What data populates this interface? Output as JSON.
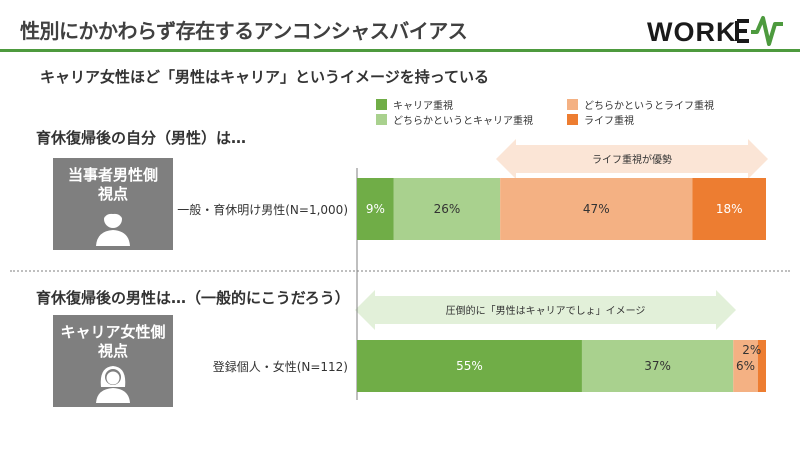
{
  "header": {
    "title": "性別にかかわらず存在するアンコンシャスバイアス",
    "logo_text": "WORKEX"
  },
  "subtitle": "キャリア女性ほど「男性はキャリア」というイメージを持っている",
  "colors": {
    "accent_green": "#4d9a3e",
    "career": "#70ad47",
    "lean_career": "#a9d18e",
    "lean_life": "#f4b183",
    "life": "#ed7d31",
    "persona_bg": "#7f7f7f",
    "arrow_bg": "#fbe5d6",
    "arrow_bg2": "#e2f0d9"
  },
  "sections": [
    {
      "heading": "育休復帰後の自分（男性）は…",
      "persona_label": "当事者男性側\n視点",
      "persona_icon": "male-user-icon",
      "arrow_label": "ライフ重視が優勢"
    },
    {
      "heading": "育休復帰後の男性は…（一般的にこうだろう）",
      "persona_label": "キャリア女性側\n視点",
      "persona_icon": "female-user-icon",
      "arrow_label": "圧倒的に「男性はキャリアでしょ」イメージ"
    }
  ],
  "chart_data": {
    "type": "bar",
    "orientation": "horizontal",
    "stacked": true,
    "percent": true,
    "categories": [
      "一般・育休明け男性(N=1,000)",
      "登録個人・女性(N=112)"
    ],
    "series": [
      {
        "name": "キャリア重視",
        "values": [
          9,
          55
        ],
        "labels": [
          "9%",
          "55%"
        ],
        "color": "#70ad47"
      },
      {
        "name": "どちらかというとキャリア重視",
        "values": [
          26,
          37
        ],
        "labels": [
          "26%",
          "37%"
        ],
        "color": "#a9d18e"
      },
      {
        "name": "どちらかというとライフ重視",
        "values": [
          47,
          6
        ],
        "labels": [
          "47%",
          "6%"
        ],
        "color": "#f4b183"
      },
      {
        "name": "ライフ重視",
        "values": [
          18,
          2
        ],
        "labels": [
          "18%",
          "2%"
        ],
        "color": "#ed7d31"
      }
    ],
    "xlim": [
      0,
      100
    ],
    "legend_position": "top"
  }
}
